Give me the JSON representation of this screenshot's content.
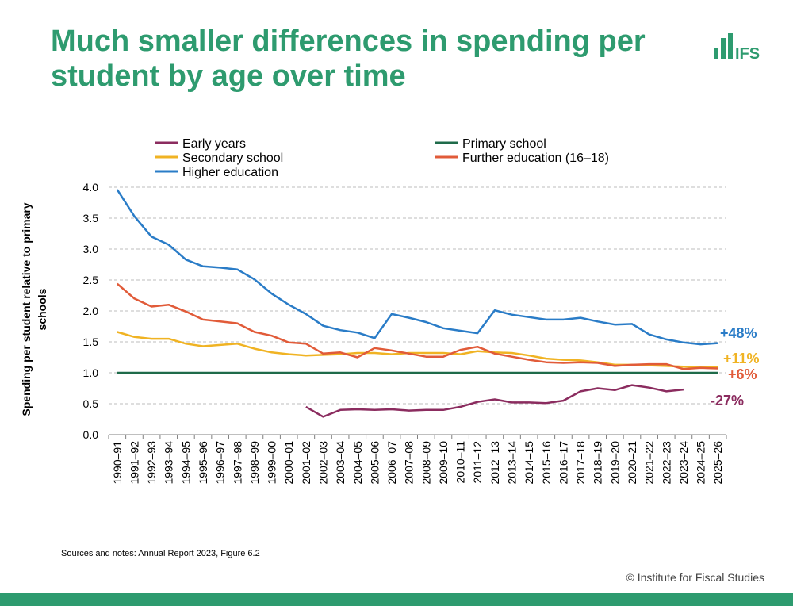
{
  "slide": {
    "title": "Much smaller differences in spending per student by age over time",
    "logo_text": "IFS",
    "sources": "Sources and notes: Annual Report 2023, Figure 6.2",
    "copyright": "© Institute for Fiscal Studies"
  },
  "colors": {
    "title": "#2e9b6f",
    "footer": "#2e9b6f",
    "early_years": "#8b2c5f",
    "primary": "#1f6b4a",
    "secondary": "#f0b323",
    "further": "#e15b39",
    "higher": "#2a7cc7"
  },
  "chart_data": {
    "type": "line",
    "title": "",
    "xlabel": "",
    "ylabel": "Spending per student relative to primary schools",
    "ylim": [
      0,
      4
    ],
    "yticks": [
      "0.0",
      "0.5",
      "1.0",
      "1.5",
      "2.0",
      "2.5",
      "3.0",
      "3.5",
      "4.0"
    ],
    "grid": true,
    "legend_position": "top",
    "categories": [
      "1990–91",
      "1991–92",
      "1992–93",
      "1993–94",
      "1994–95",
      "1995–96",
      "1996–97",
      "1997–98",
      "1998–99",
      "1999–00",
      "2000–01",
      "2001–02",
      "2002–03",
      "2003–04",
      "2004–05",
      "2005–06",
      "2006–07",
      "2007–08",
      "2008–09",
      "2009–10",
      "2010–11",
      "2011–12",
      "2012–13",
      "2013–14",
      "2014–15",
      "2015–16",
      "2016–17",
      "2017–18",
      "2018–19",
      "2019–20",
      "2020–21",
      "2021–22",
      "2022–23",
      "2023–24",
      "2024–25",
      "2025–26"
    ],
    "series": [
      {
        "name": "Early years",
        "color_key": "early_years",
        "end_label": "-27%",
        "values": [
          null,
          null,
          null,
          null,
          null,
          null,
          null,
          null,
          null,
          null,
          null,
          0.45,
          0.29,
          0.4,
          0.41,
          0.4,
          0.41,
          0.39,
          0.4,
          0.4,
          0.45,
          0.53,
          0.57,
          0.52,
          0.52,
          0.51,
          0.55,
          0.7,
          0.75,
          0.72,
          0.8,
          0.76,
          0.7,
          0.73,
          null,
          null
        ]
      },
      {
        "name": "Primary school",
        "color_key": "primary",
        "end_label": "",
        "values": [
          1,
          1,
          1,
          1,
          1,
          1,
          1,
          1,
          1,
          1,
          1,
          1,
          1,
          1,
          1,
          1,
          1,
          1,
          1,
          1,
          1,
          1,
          1,
          1,
          1,
          1,
          1,
          1,
          1,
          1,
          1,
          1,
          1,
          1,
          1,
          1
        ]
      },
      {
        "name": "Secondary school",
        "color_key": "secondary",
        "end_label": "+11%",
        "values": [
          1.66,
          1.58,
          1.55,
          1.55,
          1.47,
          1.43,
          1.45,
          1.47,
          1.39,
          1.33,
          1.3,
          1.28,
          1.29,
          1.3,
          1.32,
          1.32,
          1.3,
          1.32,
          1.32,
          1.32,
          1.3,
          1.35,
          1.33,
          1.32,
          1.28,
          1.23,
          1.21,
          1.2,
          1.17,
          1.13,
          1.13,
          1.12,
          1.11,
          1.1,
          1.1,
          1.1
        ]
      },
      {
        "name": "Further education (16–18)",
        "color_key": "further",
        "end_label": "+6%",
        "values": [
          2.44,
          2.2,
          2.07,
          2.1,
          1.99,
          1.86,
          1.83,
          1.8,
          1.66,
          1.6,
          1.49,
          1.47,
          1.31,
          1.33,
          1.25,
          1.4,
          1.36,
          1.31,
          1.26,
          1.26,
          1.37,
          1.42,
          1.31,
          1.26,
          1.21,
          1.17,
          1.16,
          1.17,
          1.16,
          1.11,
          1.13,
          1.14,
          1.14,
          1.06,
          1.08,
          1.07
        ]
      },
      {
        "name": "Higher education",
        "color_key": "higher",
        "end_label": "+48%",
        "values": [
          3.96,
          3.53,
          3.2,
          3.07,
          2.83,
          2.72,
          2.7,
          2.67,
          2.51,
          2.28,
          2.1,
          1.95,
          1.76,
          1.69,
          1.65,
          1.56,
          1.95,
          1.89,
          1.82,
          1.72,
          1.68,
          1.64,
          2.01,
          1.94,
          1.9,
          1.86,
          1.86,
          1.89,
          1.83,
          1.78,
          1.79,
          1.62,
          1.54,
          1.49,
          1.46,
          1.48
        ]
      }
    ]
  }
}
